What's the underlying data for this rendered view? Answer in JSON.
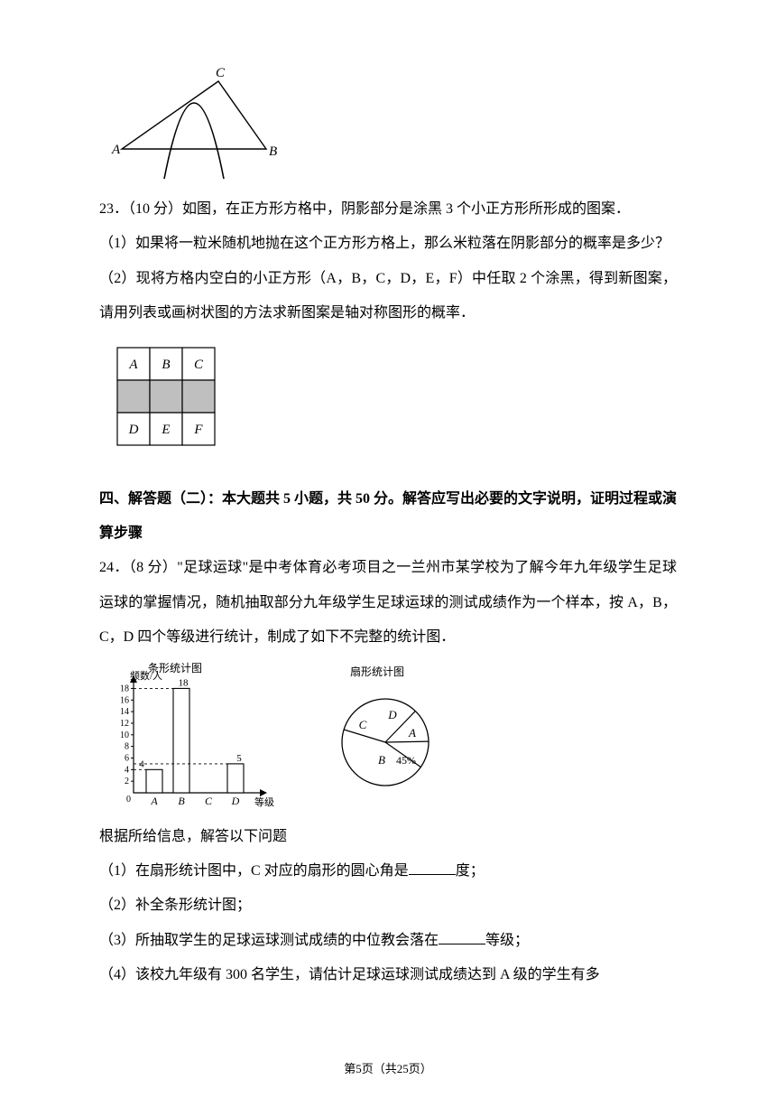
{
  "page": {
    "current": "5",
    "total": "25",
    "label_prefix": "第",
    "label_mid": "页（共",
    "label_suffix": "页）"
  },
  "triangle_figure": {
    "labels": {
      "A": "A",
      "B": "B",
      "C": "C"
    },
    "stroke": "#000000",
    "fill": "none",
    "italic": true
  },
  "q23": {
    "line1": "23．（10 分）如图，在正方形方格中，阴影部分是涂黑 3 个小正方形所形成的图案．",
    "part1": "（1）如果将一粒米随机地抛在这个正方形方格上，那么米粒落在阴影部分的概率是多少？",
    "part2": "（2）现将方格内空白的小正方形（A，B，C，D，E，F）中任取 2 个涂黑，得到新图案，请用列表或画树状图的方法求新图案是轴对称图形的概率．",
    "grid": {
      "rows": 3,
      "cols": 3,
      "labels": [
        "A",
        "B",
        "C",
        "",
        "",
        "",
        "D",
        "E",
        "F"
      ],
      "shaded_row_index": 1,
      "cell_size": 36,
      "border_color": "#000000",
      "shade_color": "#bfbfbf",
      "bg_color": "#ffffff",
      "font_italic": true
    }
  },
  "section4": {
    "heading": "四、解答题（二）：本大题共 5 小题，共 50 分。解答应写出必要的文字说明，证明过程或演算步骤"
  },
  "q24": {
    "intro": "24．（8 分）\"足球运球\"是中考体育必考项目之一兰州市某学校为了解今年九年级学生足球运球的掌握情况，随机抽取部分九年级学生足球运球的测试成绩作为一个样本，按 A，B，C，D 四个等级进行统计，制成了如下不完整的统计图．",
    "bar_chart": {
      "title": "条形统计图",
      "y_label": "频数/人",
      "x_label": "等级",
      "categories": [
        "A",
        "B",
        "C",
        "D"
      ],
      "values": [
        4,
        18,
        null,
        5
      ],
      "value_labels": {
        "A": "4",
        "B": "18",
        "D": "5"
      },
      "y_ticks": [
        0,
        2,
        4,
        6,
        8,
        10,
        12,
        14,
        16,
        18
      ],
      "ylim": [
        0,
        19
      ],
      "bar_color": "#ffffff",
      "bar_border": "#000000",
      "axis_color": "#000000",
      "dash_color": "#000000",
      "font_size": 11
    },
    "pie_chart": {
      "title": "扇形统计图",
      "sectors": [
        {
          "label": "C",
          "angle_deg": 117
        },
        {
          "label": "D",
          "angle_deg": 45
        },
        {
          "label": "A",
          "angle_deg": 36,
          "annotation": null
        },
        {
          "label": "B",
          "angle_deg": 162,
          "annotation": "45%"
        }
      ],
      "stroke": "#000000",
      "fill": "#ffffff",
      "radius": 48,
      "font_size": 13,
      "italic": true
    },
    "followup": "根据所给信息，解答以下问题",
    "p1_a": "（1）在扇形统计图中，C 对应的扇形的圆心角是",
    "p1_b": "度；",
    "p2": "（2）补全条形统计图；",
    "p3_a": "（3）所抽取学生的足球运球测试成绩的中位教会落在",
    "p3_b": "等级；",
    "p4": "（4）该校九年级有 300 名学生，请估计足球运球测试成绩达到 A 级的学生有多"
  }
}
